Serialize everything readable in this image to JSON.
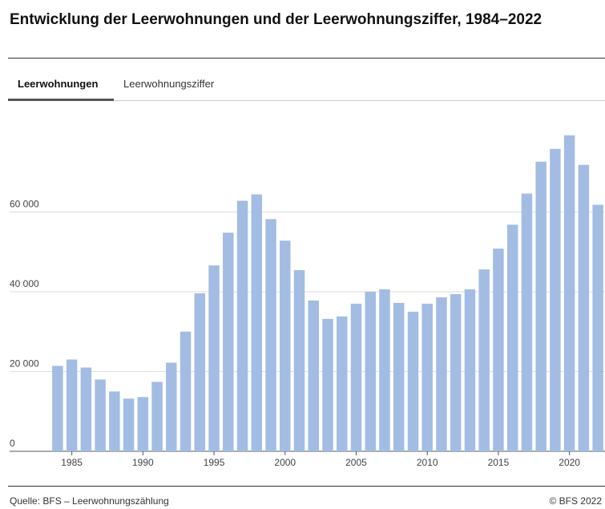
{
  "tabs": [
    "Leerwohnungen",
    "Leerwohnungsziffer"
  ],
  "footer": {
    "source": "Quelle: BFS – Leerwohnungszählung",
    "copyright": "© BFS 2022"
  },
  "chart_data": {
    "type": "bar",
    "title": "Entwicklung der Leerwohnungen und der Leerwohnungsziffer, 1984–2022",
    "x": [
      1984,
      1985,
      1986,
      1987,
      1988,
      1989,
      1990,
      1991,
      1992,
      1993,
      1994,
      1995,
      1996,
      1997,
      1998,
      1999,
      2000,
      2001,
      2002,
      2003,
      2004,
      2005,
      2006,
      2007,
      2008,
      2009,
      2010,
      2011,
      2012,
      2013,
      2014,
      2015,
      2016,
      2017,
      2018,
      2019,
      2020,
      2021,
      2022
    ],
    "values": [
      21400,
      23000,
      21000,
      18000,
      15000,
      13200,
      13600,
      17400,
      22200,
      30000,
      39600,
      46600,
      54800,
      62800,
      64400,
      58200,
      52800,
      45400,
      37800,
      33200,
      33800,
      37000,
      40000,
      40600,
      37200,
      35000,
      37000,
      38600,
      39400,
      40600,
      45600,
      50800,
      56800,
      64600,
      72600,
      75800,
      79200,
      71800,
      61800
    ],
    "color": "#a3bce3",
    "xlim": [
      1983.5,
      2022.5
    ],
    "xticks": [
      1985,
      1990,
      1995,
      2000,
      2005,
      2010,
      2015,
      2020
    ],
    "ylim": [
      0,
      85000
    ],
    "yticks": [
      0,
      {
        "value": 20000,
        "label": "20 000"
      },
      {
        "value": 40000,
        "label": "40 000"
      },
      {
        "value": 60000,
        "label": "60 000"
      }
    ],
    "grid": true
  }
}
